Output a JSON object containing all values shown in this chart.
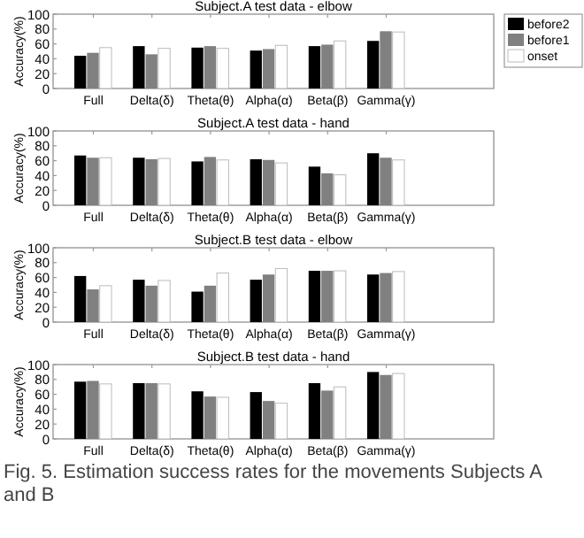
{
  "chart_data": [
    {
      "type": "bar",
      "title": "Subject.A test data - elbow",
      "ylabel": "Accuracy(%)",
      "categories": [
        "Full",
        "Delta(δ)",
        "Theta(θ)",
        "Alpha(α)",
        "Beta(β)",
        "Gamma(γ)"
      ],
      "ylim": [
        0,
        100
      ],
      "yticks": [
        0,
        20,
        40,
        60,
        80,
        100
      ],
      "legend": "right",
      "series": [
        {
          "name": "before2",
          "color": "#000000",
          "values": [
            44,
            57,
            55,
            51,
            57,
            64
          ]
        },
        {
          "name": "before1",
          "color": "#808080",
          "values": [
            48,
            46,
            57,
            53,
            59,
            77
          ]
        },
        {
          "name": "onset",
          "color": "#ffffff",
          "values": [
            55,
            54,
            54,
            58,
            64,
            76
          ]
        }
      ]
    },
    {
      "type": "bar",
      "title": "Subject.A test data - hand",
      "ylabel": "Accuracy(%)",
      "categories": [
        "Full",
        "Delta(δ)",
        "Theta(θ)",
        "Alpha(α)",
        "Beta(β)",
        "Gamma(γ)"
      ],
      "ylim": [
        0,
        100
      ],
      "yticks": [
        0,
        20,
        40,
        60,
        80,
        100
      ],
      "series": [
        {
          "color": "#000000",
          "values": [
            67,
            64,
            59,
            62,
            52,
            70
          ]
        },
        {
          "color": "#808080",
          "values": [
            64,
            62,
            65,
            61,
            43,
            64
          ]
        },
        {
          "color": "#ffffff",
          "values": [
            64,
            63,
            61,
            57,
            41,
            61
          ]
        }
      ]
    },
    {
      "type": "bar",
      "title": "Subject.B test data - elbow",
      "ylabel": "Accuracy(%)",
      "categories": [
        "Full",
        "Delta(δ)",
        "Theta(θ)",
        "Alpha(α)",
        "Beta(β)",
        "Gamma(γ)"
      ],
      "ylim": [
        0,
        100
      ],
      "yticks": [
        0,
        20,
        40,
        60,
        80,
        100
      ],
      "series": [
        {
          "color": "#000000",
          "values": [
            62,
            57,
            41,
            57,
            69,
            64
          ]
        },
        {
          "color": "#808080",
          "values": [
            44,
            49,
            49,
            64,
            69,
            66
          ]
        },
        {
          "color": "#ffffff",
          "values": [
            49,
            56,
            66,
            72,
            69,
            68
          ]
        }
      ]
    },
    {
      "type": "bar",
      "title": "Subject.B test data - hand",
      "ylabel": "Accuracy(%)",
      "categories": [
        "Full",
        "Delta(δ)",
        "Theta(θ)",
        "Alpha(α)",
        "Beta(β)",
        "Gamma(γ)"
      ],
      "ylim": [
        0,
        100
      ],
      "yticks": [
        0,
        20,
        40,
        60,
        80,
        100
      ],
      "annotations": [
        "Fig.  5.  Estimation success rates for the movements Subjects A and B"
      ],
      "series": [
        {
          "color": "#000000",
          "values": [
            77,
            75,
            64,
            63,
            75,
            90
          ]
        },
        {
          "color": "#808080",
          "values": [
            78,
            75,
            57,
            51,
            65,
            86
          ]
        },
        {
          "color": "#ffffff",
          "values": [
            74,
            74,
            56,
            48,
            70,
            88
          ]
        }
      ]
    }
  ]
}
